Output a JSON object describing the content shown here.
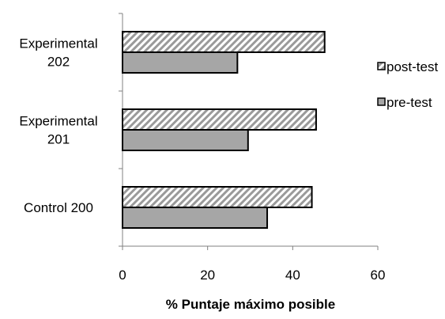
{
  "chart_data": {
    "type": "bar",
    "orientation": "horizontal",
    "categories": [
      [
        "Experimental",
        "202"
      ],
      [
        "Experimental",
        "201"
      ],
      [
        "Control 200"
      ]
    ],
    "series": [
      {
        "name": "post-test",
        "values": [
          47.5,
          45.5,
          44.5
        ],
        "fill": "hatched",
        "color": "#9a9a9a"
      },
      {
        "name": "pre-test",
        "values": [
          27,
          29.5,
          34
        ],
        "fill": "solid",
        "color": "#a6a6a6"
      }
    ],
    "xlim": [
      0,
      60
    ],
    "xticks": [
      "0",
      "20",
      "40",
      "60"
    ],
    "xlabel": "% Puntaje máximo posible",
    "ylabel": "",
    "title": "",
    "grid": false,
    "legend": "right"
  }
}
